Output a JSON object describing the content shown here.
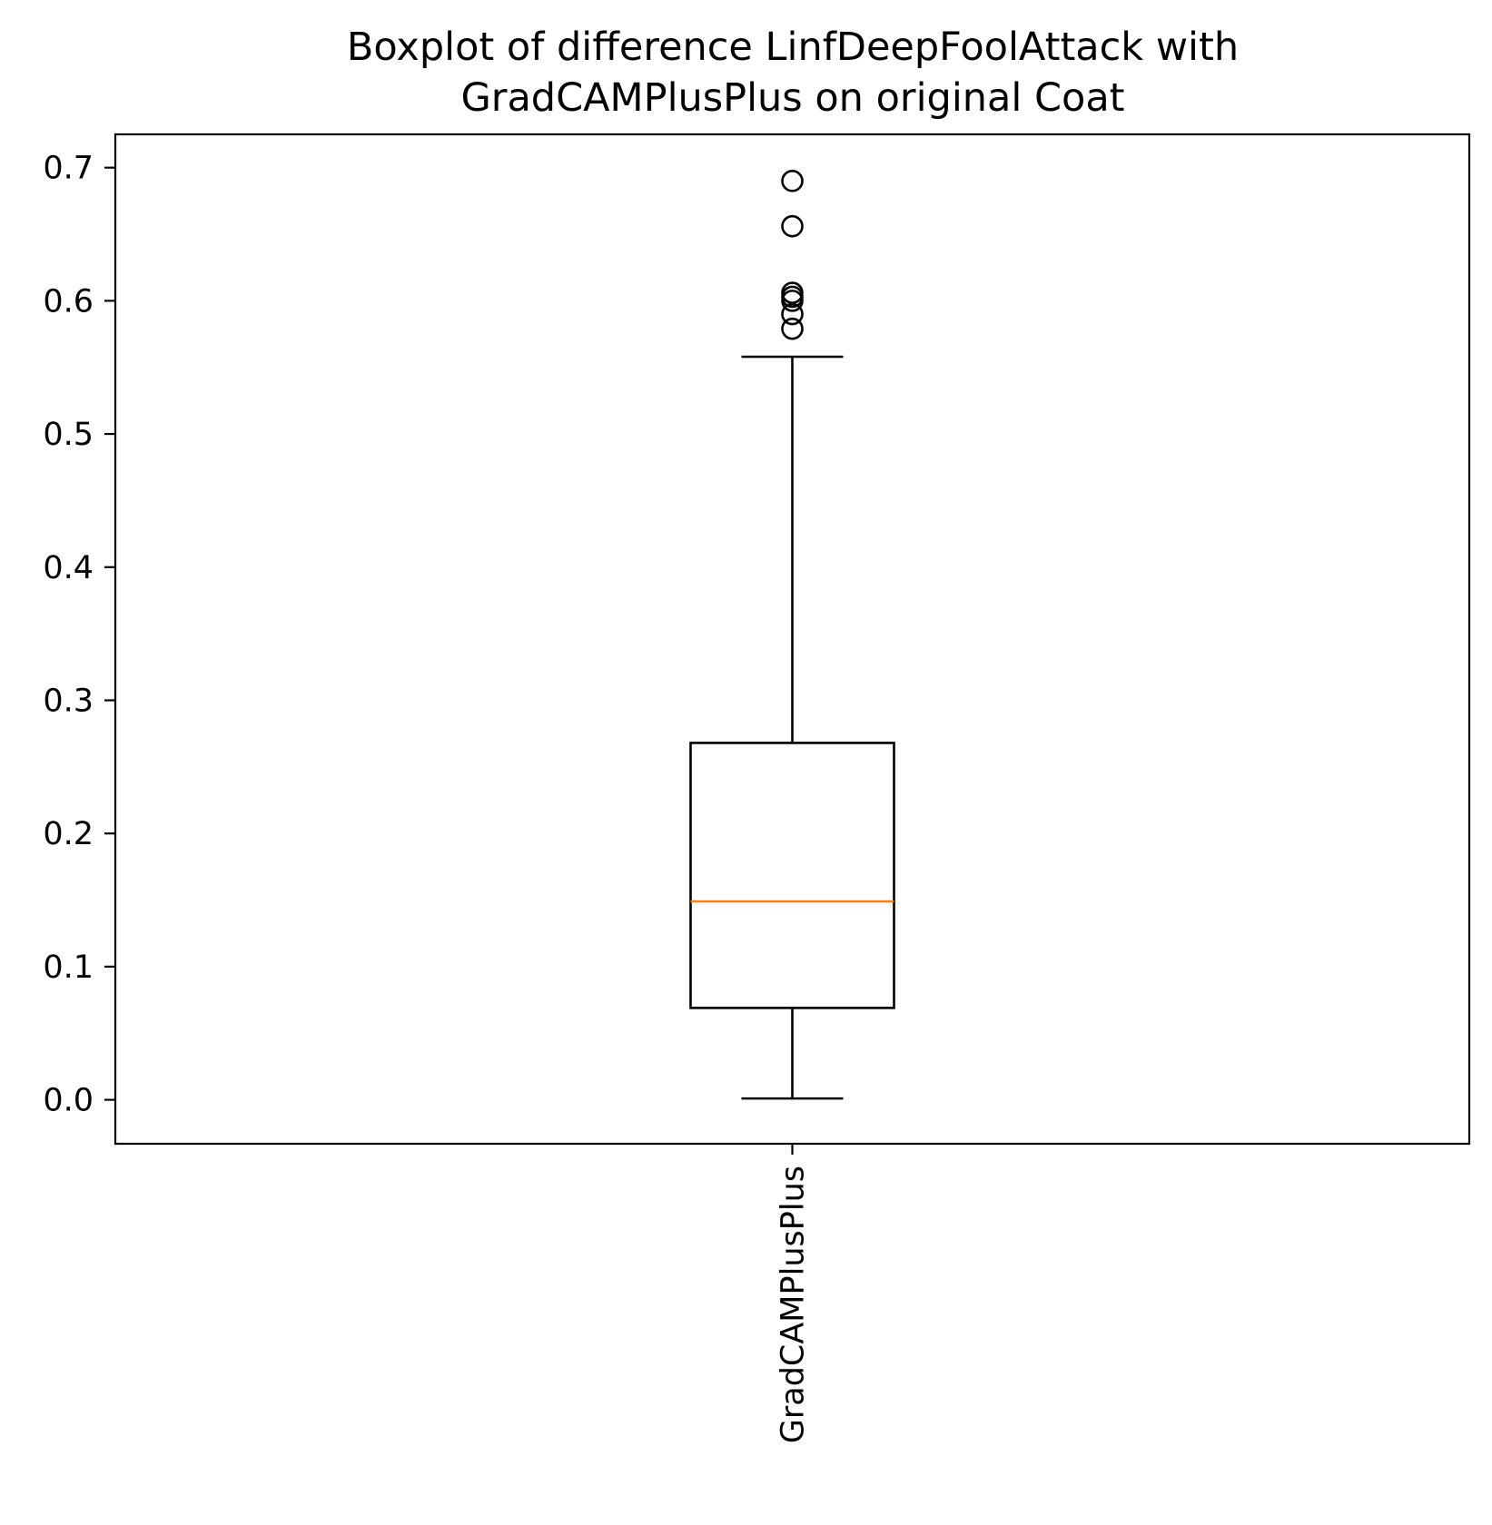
{
  "chart_data": {
    "type": "boxplot",
    "title_lines": [
      "Boxplot of difference LinfDeepFoolAttack with",
      "GradCAMPlusPlus on original Coat"
    ],
    "xlabel": "",
    "ylabel": "",
    "categories": [
      "GradCAMPlusPlus"
    ],
    "ylim": [
      -0.033,
      0.725
    ],
    "yticks": [
      0.0,
      0.1,
      0.2,
      0.3,
      0.4,
      0.5,
      0.6,
      0.7
    ],
    "ytick_labels": [
      "0.0",
      "0.1",
      "0.2",
      "0.3",
      "0.4",
      "0.5",
      "0.6",
      "0.7"
    ],
    "boxes": [
      {
        "category": "GradCAMPlusPlus",
        "whisker_low": 0.001,
        "q1": 0.069,
        "median": 0.149,
        "q3": 0.268,
        "whisker_high": 0.558,
        "outliers": [
          0.69,
          0.656,
          0.606,
          0.603,
          0.6,
          0.59,
          0.579
        ]
      }
    ],
    "colors": {
      "box": "#000000",
      "median": "#ff7f0e",
      "axes": "#000000",
      "background": "#ffffff"
    },
    "grid": false,
    "legend": "none"
  }
}
